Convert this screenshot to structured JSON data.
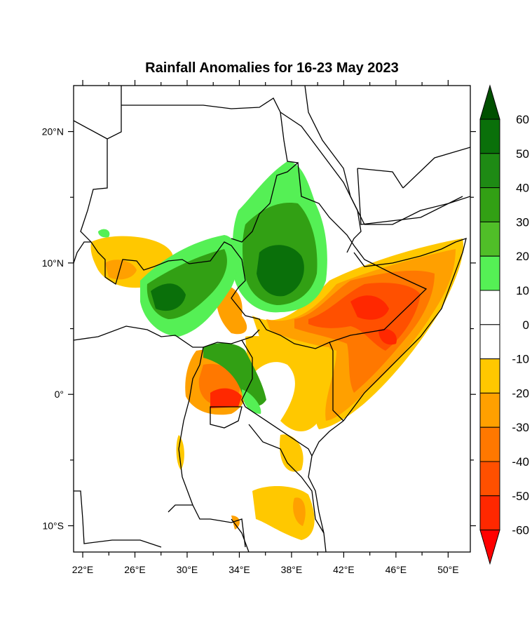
{
  "title": "Rainfall Anomalies for 16-23 May 2023",
  "map": {
    "lon_labels": [
      "22°E",
      "26°E",
      "30°E",
      "34°E",
      "38°E",
      "42°E",
      "46°E",
      "50°E"
    ],
    "lat_labels": [
      "20°N",
      "10°N",
      "0°",
      "10°S"
    ],
    "lon_range": [
      21.3,
      51.7
    ],
    "lat_range": [
      -12,
      23.5
    ]
  },
  "colorbar": {
    "labels": [
      "60",
      "50",
      "40",
      "30",
      "20",
      "10",
      "0",
      "-10",
      "-20",
      "-30",
      "-40",
      "-50",
      "-60"
    ],
    "colors": [
      "#0a700a",
      "#1e8a14",
      "#32a014",
      "#50be28",
      "#55f055",
      "#ffffff",
      "#ffffff",
      "#ffc800",
      "#ffa000",
      "#ff7800",
      "#ff5000",
      "#ff2800"
    ],
    "over_color": "#005000",
    "under_color": "#ff0000"
  }
}
